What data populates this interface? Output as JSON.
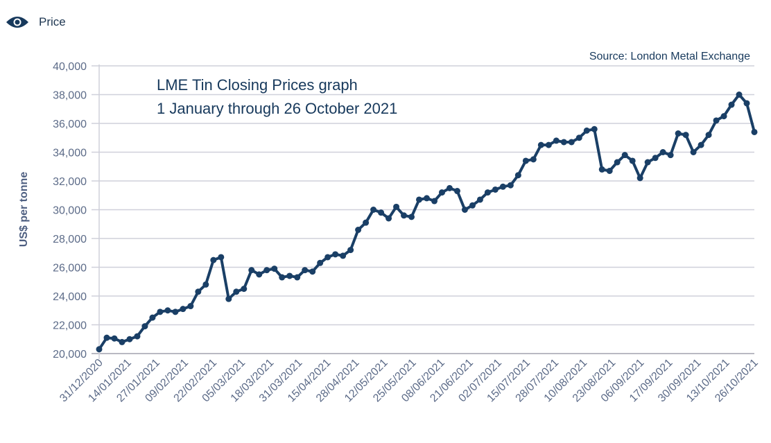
{
  "legend": {
    "label": "Price",
    "icon": "eye-icon"
  },
  "chart_data": {
    "type": "line",
    "title": "LME Tin Closing Prices graph",
    "subtitle": "1 January through 26 October 2021",
    "source": "Source: London Metal Exchange",
    "xlabel": "",
    "ylabel": "US$ per tonne",
    "ylim": [
      20000,
      40000
    ],
    "y_ticks": [
      "20,000",
      "22,000",
      "24,000",
      "26,000",
      "28,000",
      "30,000",
      "32,000",
      "34,000",
      "36,000",
      "38,000",
      "40,000"
    ],
    "y_tick_values": [
      20000,
      22000,
      24000,
      26000,
      28000,
      30000,
      32000,
      34000,
      36000,
      38000,
      40000
    ],
    "x_tick_labels": [
      "31/12/2020",
      "14/01/2021",
      "27/01/2021",
      "09/02/2021",
      "22/02/2021",
      "05/03/2021",
      "18/03/2021",
      "31/03/2021",
      "15/04/2021",
      "28/04/2021",
      "12/05/2021",
      "25/05/2021",
      "08/06/2021",
      "21/06/2021",
      "02/07/2021",
      "15/07/2021",
      "28/07/2021",
      "10/08/2021",
      "23/08/2021",
      "06/09/2021",
      "17/09/2021",
      "30/09/2021",
      "13/10/2021",
      "26/10/2021"
    ],
    "grid": "horizontal",
    "line_color": "#1a3f66",
    "series": [
      {
        "name": "Price",
        "values": [
          20300,
          21100,
          21050,
          20800,
          21000,
          21200,
          21900,
          22500,
          22900,
          23000,
          22900,
          23100,
          23300,
          24300,
          24800,
          26500,
          26700,
          23800,
          24300,
          24500,
          25800,
          25500,
          25800,
          25900,
          25300,
          25400,
          25300,
          25800,
          25700,
          26300,
          26700,
          26900,
          26800,
          27200,
          28600,
          29100,
          30000,
          29800,
          29400,
          30200,
          29600,
          29500,
          30700,
          30800,
          30600,
          31200,
          31500,
          31300,
          30000,
          30300,
          30700,
          31200,
          31400,
          31600,
          31700,
          32400,
          33400,
          33500,
          34500,
          34500,
          34800,
          34700,
          34700,
          35000,
          35500,
          35600,
          32800,
          32700,
          33300,
          33800,
          33400,
          32200,
          33300,
          33600,
          34000,
          33800,
          35300,
          35200,
          34000,
          34500,
          35200,
          36200,
          36500,
          37300,
          38000,
          37400,
          35400
        ]
      }
    ]
  }
}
